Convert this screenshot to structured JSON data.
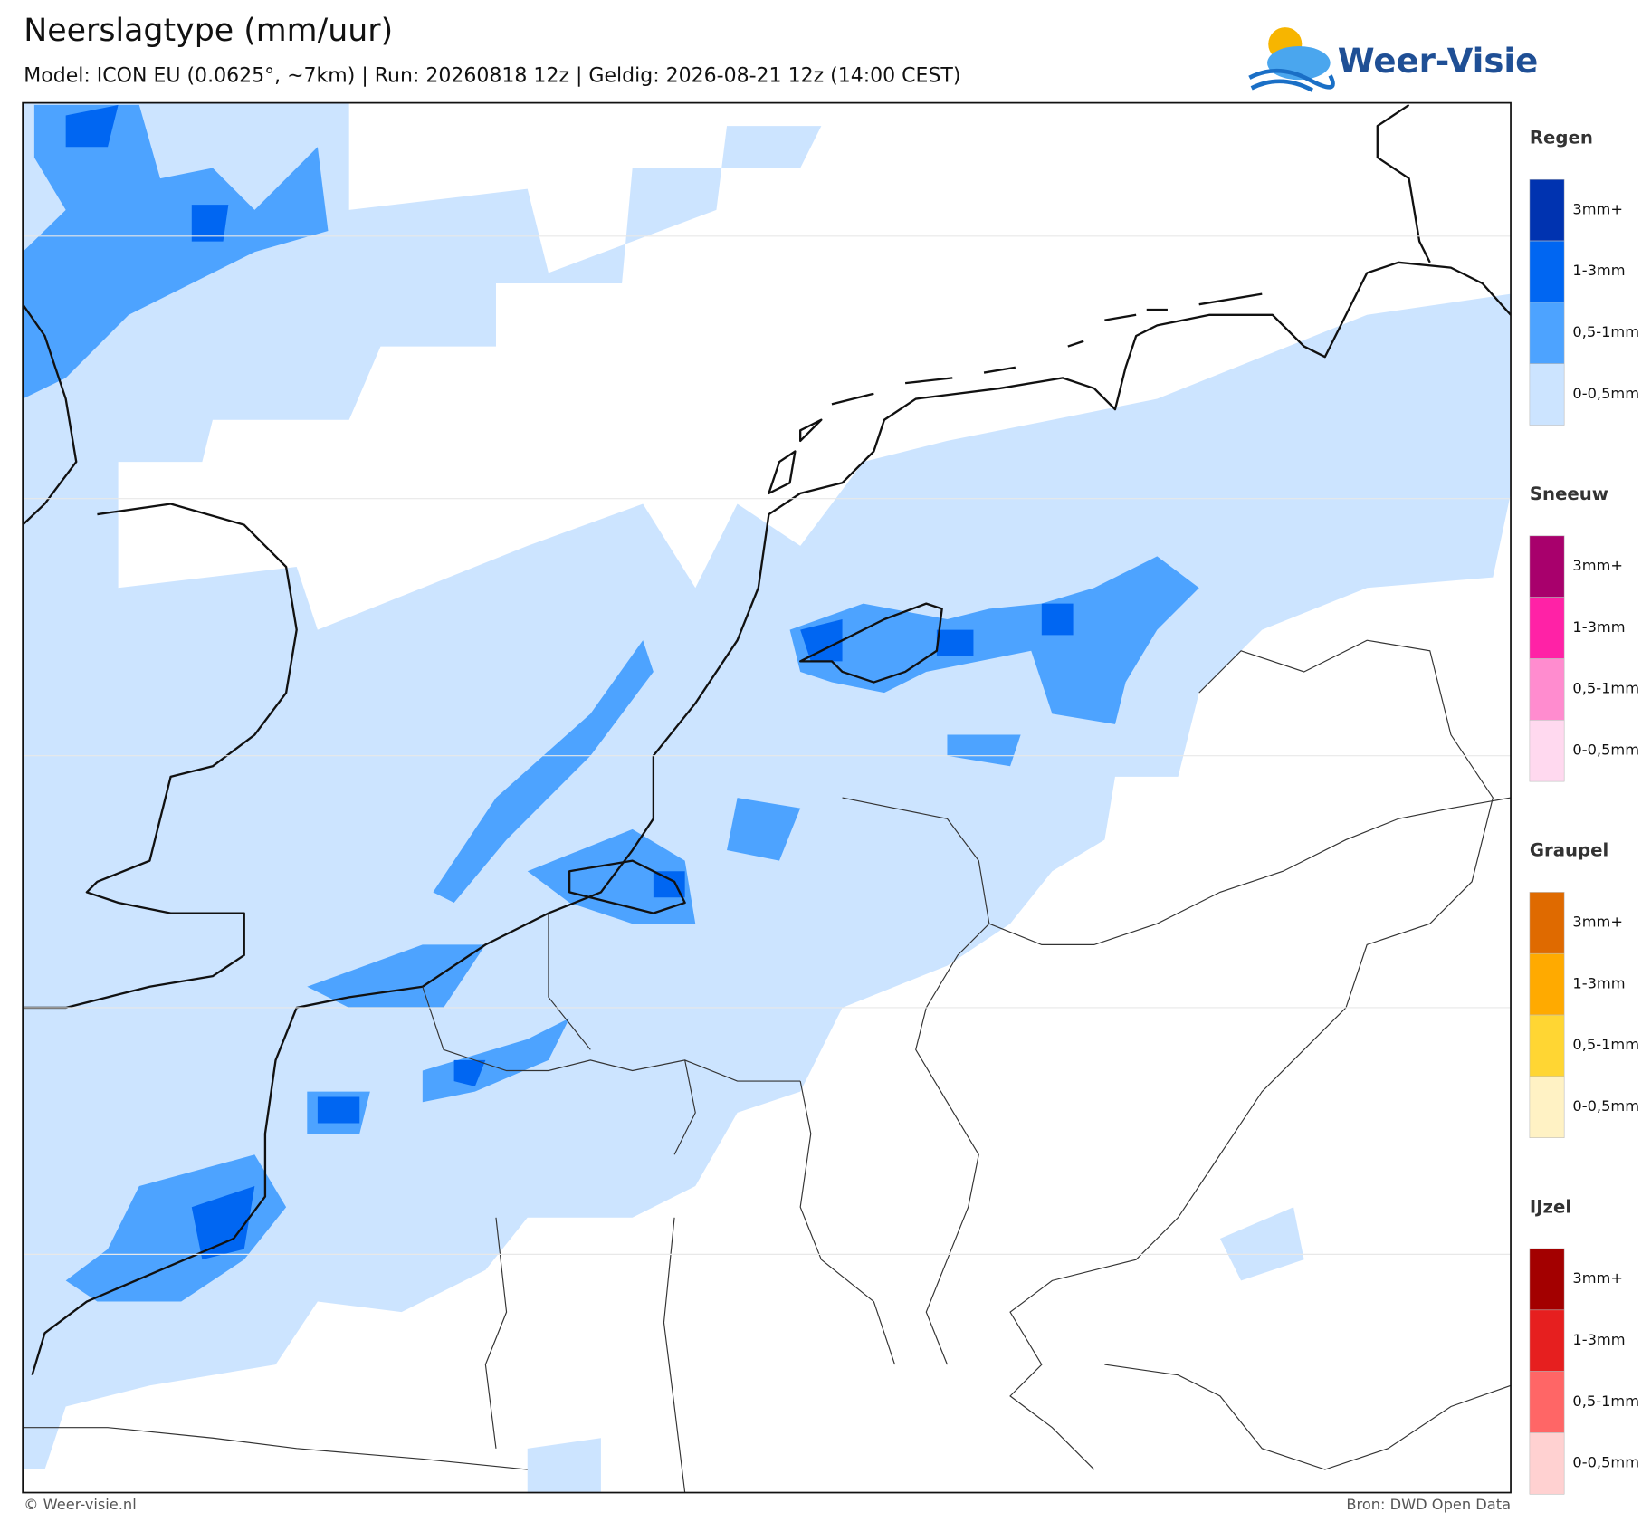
{
  "header": {
    "title": "Neerslagtype (mm/uur)",
    "subtitle": "Model: ICON EU (0.0625°, ~7km)  |  Run: 20260818 12z  |  Geldig: 2026-08-21 12z (14:00 CEST)"
  },
  "logo": {
    "text": "Weer-Visie"
  },
  "legend": {
    "groups": [
      {
        "title": "Regen",
        "items": [
          {
            "label": "3mm+",
            "color": "#0033b0"
          },
          {
            "label": "1-3mm",
            "color": "#0066f2"
          },
          {
            "label": "0,5-1mm",
            "color": "#4da3ff"
          },
          {
            "label": "0-0,5mm",
            "color": "#cce4ff"
          }
        ]
      },
      {
        "title": "Sneeuw",
        "items": [
          {
            "label": "3mm+",
            "color": "#a8006c"
          },
          {
            "label": "1-3mm",
            "color": "#ff22a6"
          },
          {
            "label": "0,5-1mm",
            "color": "#ff8ccf"
          },
          {
            "label": "0-0,5mm",
            "color": "#ffd9ef"
          }
        ]
      },
      {
        "title": "Graupel",
        "items": [
          {
            "label": "3mm+",
            "color": "#df6a00"
          },
          {
            "label": "1-3mm",
            "color": "#ffaa00"
          },
          {
            "label": "0,5-1mm",
            "color": "#ffd633"
          },
          {
            "label": "0-0,5mm",
            "color": "#fff2c4"
          }
        ]
      },
      {
        "title": "IJzel",
        "items": [
          {
            "label": "3mm+",
            "color": "#a30000"
          },
          {
            "label": "1-3mm",
            "color": "#e61f1f"
          },
          {
            "label": "0,5-1mm",
            "color": "#ff6666"
          },
          {
            "label": "0-0,5mm",
            "color": "#ffd1d1"
          }
        ]
      }
    ]
  },
  "footer": {
    "left": "© Weer-visie.nl",
    "right": "Bron: DWD Open Data"
  }
}
